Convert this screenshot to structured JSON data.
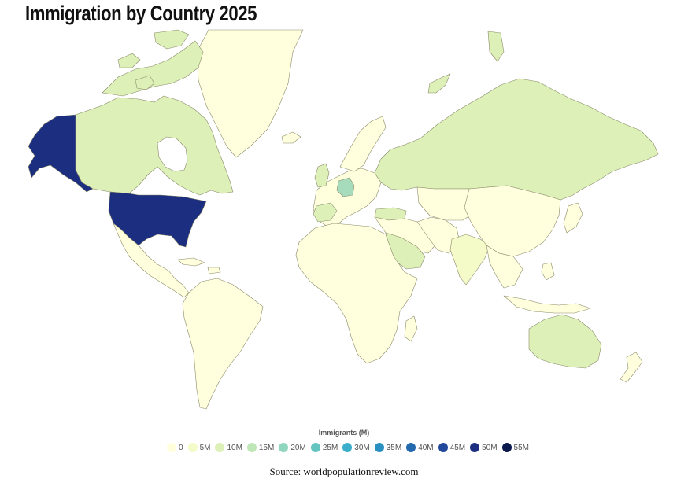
{
  "title": "Immigration by Country 2025",
  "source": "Source: worldpopulationreview.com",
  "legend": {
    "title": "Immigrants (M)",
    "items": [
      {
        "label": "0",
        "color": "#ffffdd"
      },
      {
        "label": "5M",
        "color": "#f4fac8"
      },
      {
        "label": "10M",
        "color": "#dcf0b8"
      },
      {
        "label": "15M",
        "color": "#bfe6b6"
      },
      {
        "label": "20M",
        "color": "#90d6bf"
      },
      {
        "label": "25M",
        "color": "#64c4c0"
      },
      {
        "label": "30M",
        "color": "#3aaecb"
      },
      {
        "label": "35M",
        "color": "#2a90c2"
      },
      {
        "label": "40M",
        "color": "#2468ad"
      },
      {
        "label": "45M",
        "color": "#22489c"
      },
      {
        "label": "50M",
        "color": "#1c2e80"
      },
      {
        "label": "55M",
        "color": "#0b1a4d"
      }
    ]
  },
  "colors": {
    "lowest": "#ffffdd",
    "low": "#f4fac8",
    "mid_low": "#dcf0b8",
    "mid": "#bfe6b6",
    "mid_high": "#a6dcbc",
    "highest_shown": "#1c2e80"
  }
}
